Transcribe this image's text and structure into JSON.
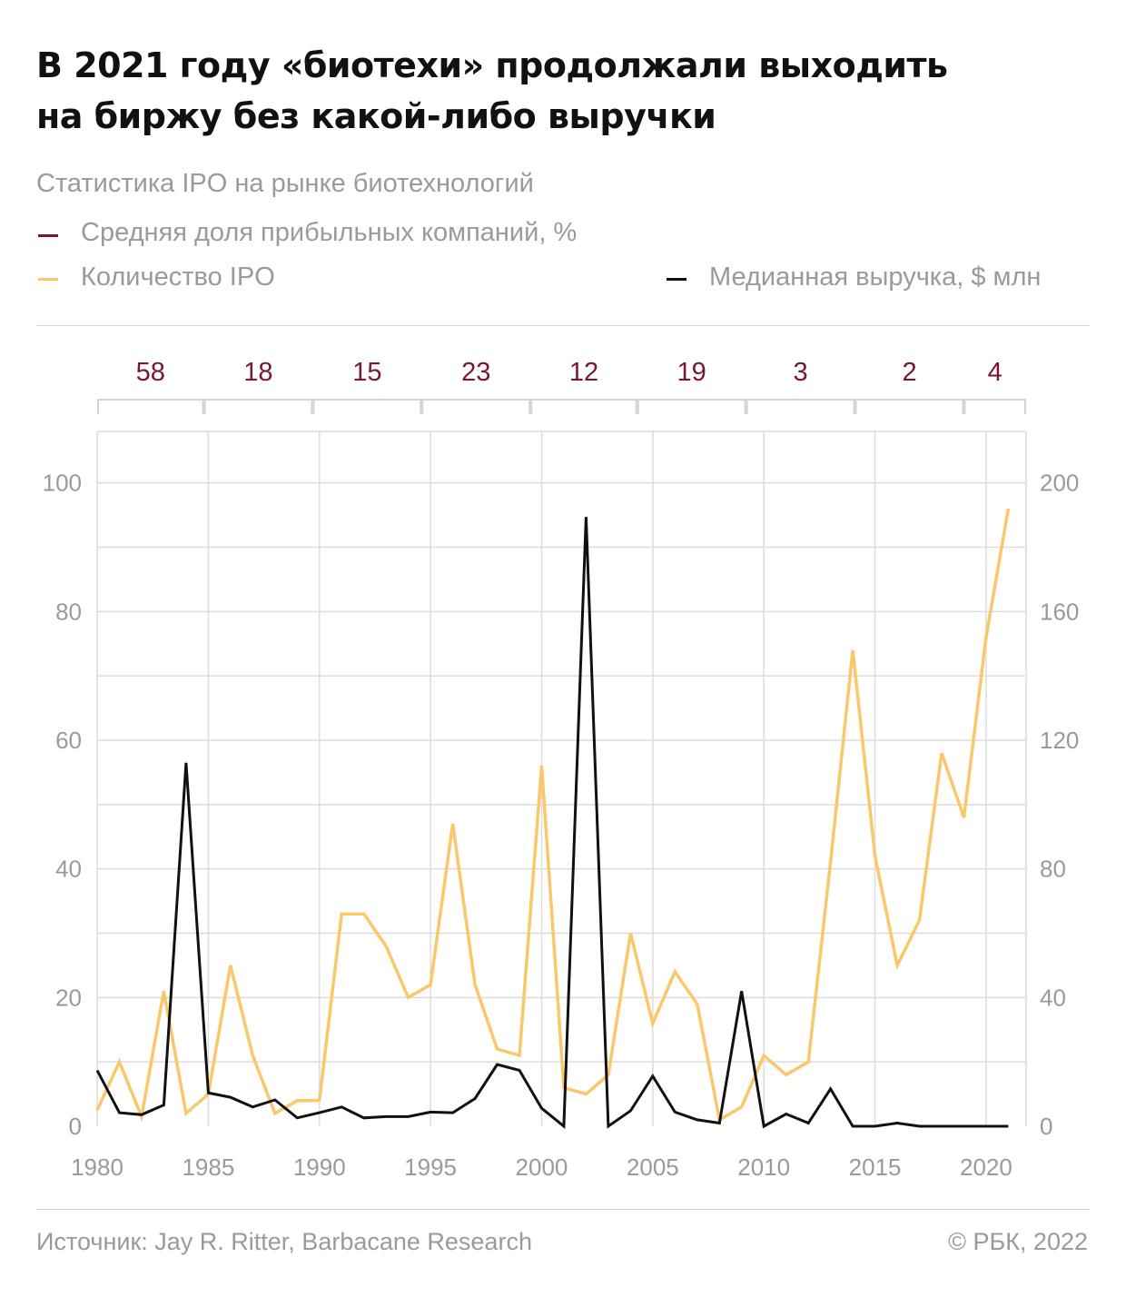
{
  "header": {
    "title_line1": "В 2021 году «биотехи» продолжали выходить",
    "title_line2": "на биржу без какой-либо выручки",
    "subtitle": "Статистика IPO на рынке биотехнологий"
  },
  "legend": {
    "share": {
      "label": "Средняя доля прибыльных компаний, %",
      "color": "#7a1537"
    },
    "ipo": {
      "label": "Количество IPO",
      "color": "#fbc76b"
    },
    "revenue": {
      "label": "Медианная выручка, $ млн",
      "color": "#111111"
    }
  },
  "footer": {
    "source": "Источник: Jay R. Ritter, Barbacane Research",
    "copyright": "© РБК, 2022"
  },
  "chart_data": {
    "type": "line",
    "x_ticks": [
      "1980",
      "1985",
      "1990",
      "1995",
      "2000",
      "2005",
      "2010",
      "2015",
      "2020"
    ],
    "left_axis": {
      "ticks": [
        "0",
        "20",
        "40",
        "60",
        "80",
        "100"
      ],
      "ylim": [
        0,
        108
      ]
    },
    "right_axis": {
      "ticks": [
        "0",
        "40",
        "80",
        "120",
        "160",
        "200"
      ],
      "ylim": [
        0,
        216
      ]
    },
    "grid": true,
    "profitable_share_periods": [
      {
        "from": 1980,
        "to": 1984.8,
        "value": "58"
      },
      {
        "from": 1984.8,
        "to": 1989.7,
        "value": "18"
      },
      {
        "from": 1989.7,
        "to": 1994.6,
        "value": "15"
      },
      {
        "from": 1994.6,
        "to": 1999.5,
        "value": "23"
      },
      {
        "from": 1999.5,
        "to": 2004.3,
        "value": "12"
      },
      {
        "from": 2004.3,
        "to": 2009.2,
        "value": "19"
      },
      {
        "from": 2009.2,
        "to": 2014.1,
        "value": "3"
      },
      {
        "from": 2014.1,
        "to": 2019.0,
        "value": "2"
      },
      {
        "from": 2019.0,
        "to": 2021.8,
        "value": "4"
      }
    ],
    "series": [
      {
        "name": "Количество IPO",
        "axis": "right",
        "color": "#fbc76b",
        "x": [
          1980,
          1981,
          1982,
          1983,
          1984,
          1985,
          1986,
          1987,
          1988,
          1989,
          1990,
          1991,
          1992,
          1993,
          1994,
          1995,
          1996,
          1997,
          1998,
          1999,
          2000,
          2001,
          2002,
          2003,
          2004,
          2005,
          2006,
          2007,
          2008,
          2009,
          2010,
          2011,
          2012,
          2013,
          2014,
          2015,
          2016,
          2017,
          2018,
          2019,
          2020,
          2021
        ],
        "y": [
          5,
          20,
          3,
          42,
          4,
          10,
          50,
          22,
          4,
          8,
          8,
          66,
          66,
          56,
          40,
          44,
          94,
          44,
          24,
          22,
          112,
          12,
          10,
          16,
          60,
          32,
          48,
          38,
          2,
          6,
          22,
          16,
          20,
          82,
          148,
          84,
          50,
          64,
          116,
          96,
          152,
          192
        ]
      },
      {
        "name": "Медианная выручка, $ млн",
        "axis": "left",
        "color": "#111111",
        "x": [
          1980,
          1981,
          1982,
          1983,
          1984,
          1985,
          1986,
          1987,
          1988,
          1989,
          1990,
          1991,
          1992,
          1993,
          1994,
          1995,
          1996,
          1997,
          1998,
          1999,
          2000,
          2001,
          2002,
          2003,
          2004,
          2005,
          2006,
          2007,
          2008,
          2009,
          2010,
          2011,
          2012,
          2013,
          2014,
          2015,
          2016,
          2017,
          2018,
          2019,
          2020,
          2021
        ],
        "y": [
          8.7,
          2.1,
          1.8,
          3.3,
          56.5,
          5.2,
          4.5,
          3,
          4.1,
          1.3,
          2.1,
          3,
          1.3,
          1.5,
          1.5,
          2.2,
          2.1,
          4.3,
          9.6,
          8.7,
          2.8,
          0,
          94.7,
          0,
          2.4,
          7.8,
          2.2,
          1,
          0.5,
          21,
          0,
          1.9,
          0.5,
          5.8,
          0,
          0,
          0.5,
          0,
          0,
          0,
          0,
          0
        ]
      }
    ]
  }
}
